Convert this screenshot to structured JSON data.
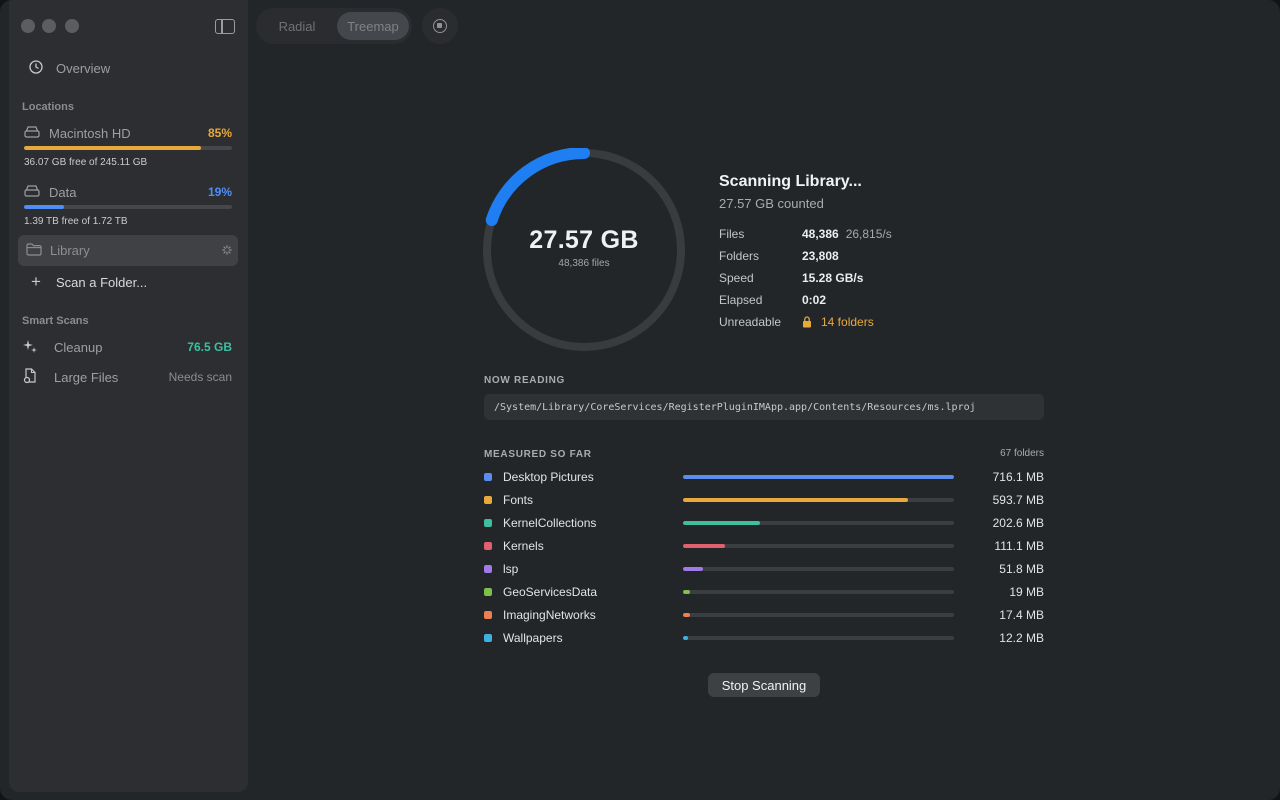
{
  "sidebar": {
    "overview_label": "Overview",
    "locations_title": "Locations",
    "disks": [
      {
        "name": "Macintosh HD",
        "percent": "85%",
        "fill": 0.85,
        "free": "36.07 GB free of 245.11 GB",
        "color": "#e8a93c"
      },
      {
        "name": "Data",
        "percent": "19%",
        "fill": 0.19,
        "free": "1.39 TB free of 1.72 TB",
        "color": "#4f8ef7"
      }
    ],
    "library_label": "Library",
    "scan_folder_label": "Scan a Folder...",
    "smart_scans_title": "Smart Scans",
    "cleanup_label": "Cleanup",
    "cleanup_value": "76.5 GB",
    "large_files_label": "Large Files",
    "large_files_value": "Needs scan"
  },
  "toolbar": {
    "radial_label": "Radial",
    "treemap_label": "Treemap",
    "active_view": "Treemap"
  },
  "scan": {
    "progress": 0.2,
    "total_size": "27.57 GB",
    "total_files": "48,386 files",
    "title": "Scanning Library...",
    "counted": "27.57 GB counted",
    "stats": {
      "files_label": "Files",
      "files_value": "48,386",
      "files_rate": "26,815/s",
      "folders_label": "Folders",
      "folders_value": "23,808",
      "speed_label": "Speed",
      "speed_value": "15.28 GB/s",
      "elapsed_label": "Elapsed",
      "elapsed_value": "0:02",
      "unreadable_label": "Unreadable",
      "unreadable_value": "14 folders"
    },
    "now_reading_title": "NOW READING",
    "current_path": "/System/Library/CoreServices/RegisterPluginIMApp.app/Contents/Resources/ms.lproj",
    "measured_title": "MEASURED SO FAR",
    "folder_count": "67 folders",
    "folders": [
      {
        "name": "Desktop Pictures",
        "size": "716.1 MB",
        "fraction": 1.0,
        "color": "#5b8def"
      },
      {
        "name": "Fonts",
        "size": "593.7 MB",
        "fraction": 0.83,
        "color": "#e8a93c"
      },
      {
        "name": "KernelCollections",
        "size": "202.6 MB",
        "fraction": 0.283,
        "color": "#3fbfa0"
      },
      {
        "name": "Kernels",
        "size": "111.1 MB",
        "fraction": 0.155,
        "color": "#e0606e"
      },
      {
        "name": "lsp",
        "size": "51.8 MB",
        "fraction": 0.072,
        "color": "#a07ae8"
      },
      {
        "name": "GeoServicesData",
        "size": "19 MB",
        "fraction": 0.027,
        "color": "#7fc04a"
      },
      {
        "name": "ImagingNetworks",
        "size": "17.4 MB",
        "fraction": 0.024,
        "color": "#ee7f4f"
      },
      {
        "name": "Wallpapers",
        "size": "12.2 MB",
        "fraction": 0.017,
        "color": "#3fb0e0"
      }
    ],
    "stop_label": "Stop Scanning"
  }
}
